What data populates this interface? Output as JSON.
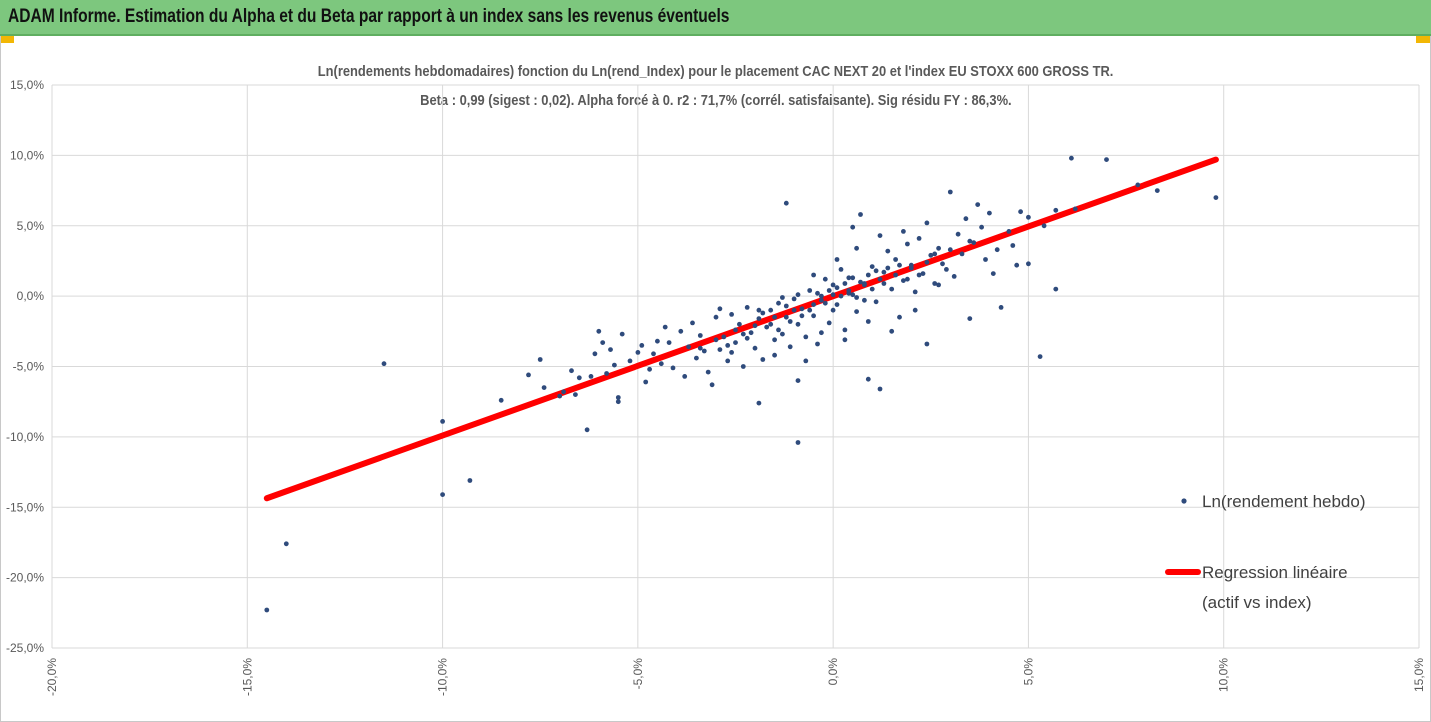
{
  "banner": {
    "title": "ADAM Informe. Estimation du Alpha et du Beta par rapport à un index sans les revenus éventuels"
  },
  "chart_data": {
    "type": "scatter",
    "title": "Ln(rendements hebdomadaires) fonction du Ln(rend_Index) pour le placement CAC NEXT 20 et l'index EU STOXX 600 GROSS TR.",
    "subtitle": "Beta : 0,99 (sigest : 0,02). Alpha forcé à 0. r2 : 71,7% (corrél. satisfaisante). Sig résidu FY : 86,3%.",
    "xlabel": "",
    "ylabel": "",
    "xlim": [
      -20,
      15
    ],
    "ylim": [
      -25,
      15
    ],
    "x_ticks": [
      "-20,0%",
      "-15,0%",
      "-10,0%",
      "-5,0%",
      "0,0%",
      "5,0%",
      "10,0%",
      "15,0%"
    ],
    "y_ticks": [
      "15,0%",
      "10,0%",
      "5,0%",
      "0,0%",
      "-5,0%",
      "-10,0%",
      "-15,0%",
      "-20,0%",
      "-25,0%"
    ],
    "grid": true,
    "legend_position": "right",
    "colors": {
      "points": "#2f4b7c",
      "regression": "#ff0000"
    },
    "series": [
      {
        "name": "Ln(rendement hebdo)",
        "kind": "points",
        "points": [
          [
            -14.5,
            -22.3
          ],
          [
            -14.0,
            -17.6
          ],
          [
            -11.5,
            -4.8
          ],
          [
            -10.0,
            -14.1
          ],
          [
            -10.0,
            -8.9
          ],
          [
            -9.3,
            -13.1
          ],
          [
            -8.5,
            -7.4
          ],
          [
            -7.8,
            -5.6
          ],
          [
            -7.5,
            -4.5
          ],
          [
            -7.4,
            -6.5
          ],
          [
            -7.0,
            -7.1
          ],
          [
            -6.9,
            -6.8
          ],
          [
            -6.7,
            -5.3
          ],
          [
            -6.5,
            -5.8
          ],
          [
            -6.3,
            -9.5
          ],
          [
            -6.1,
            -4.1
          ],
          [
            -6.0,
            -2.5
          ],
          [
            -5.8,
            -5.5
          ],
          [
            -5.7,
            -3.8
          ],
          [
            -5.6,
            -4.9
          ],
          [
            -5.5,
            -7.2
          ],
          [
            -5.5,
            -7.5
          ],
          [
            -5.4,
            -2.7
          ],
          [
            -5.2,
            -4.6
          ],
          [
            -5.0,
            -4.0
          ],
          [
            -4.9,
            -3.5
          ],
          [
            -4.7,
            -5.2
          ],
          [
            -4.5,
            -3.2
          ],
          [
            -4.4,
            -4.8
          ],
          [
            -4.2,
            -3.3
          ],
          [
            -4.1,
            -5.1
          ],
          [
            -3.9,
            -2.5
          ],
          [
            -3.8,
            -5.7
          ],
          [
            -3.7,
            -3.6
          ],
          [
            -3.6,
            -1.9
          ],
          [
            -3.5,
            -4.4
          ],
          [
            -3.4,
            -2.8
          ],
          [
            -3.3,
            -3.9
          ],
          [
            -3.2,
            -5.4
          ],
          [
            -3.0,
            -1.5
          ],
          [
            -2.9,
            -3.8
          ],
          [
            -2.8,
            -2.9
          ],
          [
            -2.7,
            -4.6
          ],
          [
            -2.6,
            -1.3
          ],
          [
            -2.5,
            -3.3
          ],
          [
            -2.4,
            -2.0
          ],
          [
            -2.3,
            -5.0
          ],
          [
            -2.2,
            -0.8
          ],
          [
            -2.1,
            -2.6
          ],
          [
            -2.0,
            -3.7
          ],
          [
            -1.9,
            -7.6
          ],
          [
            -1.9,
            -1.6
          ],
          [
            -1.8,
            -4.5
          ],
          [
            -1.7,
            -2.2
          ],
          [
            -1.6,
            -1.0
          ],
          [
            -1.5,
            -3.1
          ],
          [
            -1.4,
            -0.5
          ],
          [
            -1.3,
            -2.7
          ],
          [
            -1.2,
            6.6
          ],
          [
            -1.2,
            -1.5
          ],
          [
            -1.1,
            -3.6
          ],
          [
            -1.0,
            -0.2
          ],
          [
            -0.9,
            -10.4
          ],
          [
            -0.9,
            -6.0
          ],
          [
            -0.9,
            -2.0
          ],
          [
            -0.8,
            -0.9
          ],
          [
            -0.7,
            -2.9
          ],
          [
            -0.6,
            0.4
          ],
          [
            -0.5,
            -1.4
          ],
          [
            -0.4,
            -3.4
          ],
          [
            -0.3,
            -0.3
          ],
          [
            -0.2,
            1.2
          ],
          [
            -0.1,
            -1.9
          ],
          [
            0.0,
            0.8
          ],
          [
            0.1,
            -0.6
          ],
          [
            0.2,
            1.9
          ],
          [
            0.3,
            -2.4
          ],
          [
            0.4,
            0.2
          ],
          [
            0.5,
            4.9
          ],
          [
            0.5,
            1.3
          ],
          [
            0.6,
            -1.1
          ],
          [
            0.7,
            5.8
          ],
          [
            0.8,
            0.9
          ],
          [
            0.9,
            -5.9
          ],
          [
            1.0,
            2.1
          ],
          [
            1.1,
            -0.4
          ],
          [
            1.2,
            -6.6
          ],
          [
            1.3,
            1.7
          ],
          [
            1.4,
            3.2
          ],
          [
            1.5,
            0.5
          ],
          [
            1.6,
            2.6
          ],
          [
            1.7,
            -1.5
          ],
          [
            1.8,
            1.1
          ],
          [
            1.9,
            3.7
          ],
          [
            2.0,
            2.2
          ],
          [
            2.1,
            0.3
          ],
          [
            2.2,
            4.1
          ],
          [
            2.3,
            1.6
          ],
          [
            2.4,
            -3.4
          ],
          [
            2.5,
            2.9
          ],
          [
            2.6,
            0.9
          ],
          [
            2.7,
            3.4
          ],
          [
            2.8,
            2.3
          ],
          [
            3.0,
            7.4
          ],
          [
            3.1,
            1.4
          ],
          [
            3.3,
            3.0
          ],
          [
            3.4,
            5.5
          ],
          [
            3.5,
            -1.6
          ],
          [
            3.6,
            3.8
          ],
          [
            3.7,
            6.5
          ],
          [
            3.9,
            2.6
          ],
          [
            4.0,
            5.9
          ],
          [
            4.2,
            3.3
          ],
          [
            4.3,
            -0.8
          ],
          [
            4.5,
            4.6
          ],
          [
            4.7,
            2.2
          ],
          [
            4.8,
            6.0
          ],
          [
            5.0,
            2.3
          ],
          [
            5.0,
            5.6
          ],
          [
            5.3,
            -4.3
          ],
          [
            5.4,
            5.0
          ],
          [
            5.7,
            0.5
          ],
          [
            5.7,
            6.1
          ],
          [
            6.1,
            9.8
          ],
          [
            6.2,
            6.2
          ],
          [
            7.0,
            9.7
          ],
          [
            7.8,
            7.9
          ],
          [
            8.3,
            7.5
          ],
          [
            9.8,
            7.0
          ],
          [
            -6.6,
            -7.0
          ],
          [
            -6.2,
            -5.7
          ],
          [
            -5.9,
            -3.3
          ],
          [
            -4.8,
            -6.1
          ],
          [
            -4.6,
            -4.1
          ],
          [
            -4.3,
            -2.2
          ],
          [
            -3.1,
            -6.3
          ],
          [
            -2.9,
            -0.9
          ],
          [
            -2.6,
            -4.0
          ],
          [
            -2.2,
            -3.0
          ],
          [
            -1.8,
            -1.2
          ],
          [
            -1.5,
            -4.2
          ],
          [
            -1.3,
            -0.1
          ],
          [
            -0.7,
            -4.6
          ],
          [
            -0.5,
            1.5
          ],
          [
            -0.3,
            -2.6
          ],
          [
            0.1,
            2.6
          ],
          [
            0.3,
            -3.1
          ],
          [
            0.6,
            3.4
          ],
          [
            0.9,
            -1.8
          ],
          [
            1.2,
            4.3
          ],
          [
            1.5,
            -2.5
          ],
          [
            1.8,
            4.6
          ],
          [
            2.1,
            -1.0
          ],
          [
            2.4,
            5.2
          ],
          [
            2.7,
            0.8
          ],
          [
            2.9,
            1.9
          ],
          [
            3.2,
            4.4
          ],
          [
            3.8,
            4.9
          ],
          [
            4.1,
            1.6
          ],
          [
            4.6,
            3.6
          ],
          [
            -3.0,
            -3.1
          ],
          [
            -2.5,
            -2.4
          ],
          [
            -2.0,
            -2.1
          ],
          [
            -1.5,
            -1.5
          ],
          [
            -1.0,
            -1.0
          ],
          [
            -0.5,
            -0.6
          ],
          [
            0.0,
            0.1
          ],
          [
            0.4,
            0.4
          ],
          [
            0.8,
            0.8
          ],
          [
            1.2,
            1.2
          ],
          [
            1.6,
            1.5
          ],
          [
            2.0,
            2.0
          ],
          [
            2.4,
            2.4
          ],
          [
            -0.2,
            -0.5
          ],
          [
            0.2,
            0.0
          ],
          [
            0.7,
            1.0
          ],
          [
            1.0,
            0.5
          ],
          [
            -0.6,
            -1.0
          ],
          [
            -1.2,
            -0.7
          ],
          [
            1.4,
            2.0
          ],
          [
            0.5,
            0.1
          ],
          [
            0.3,
            0.9
          ],
          [
            -0.8,
            -1.4
          ],
          [
            -0.4,
            0.2
          ],
          [
            0.9,
            1.5
          ],
          [
            1.3,
            0.9
          ],
          [
            -1.6,
            -2.0
          ],
          [
            -2.3,
            -2.7
          ],
          [
            -1.9,
            -1.0
          ],
          [
            2.2,
            1.5
          ],
          [
            2.6,
            3.0
          ],
          [
            0.0,
            -1.0
          ],
          [
            0.1,
            0.6
          ],
          [
            0.6,
            -0.1
          ],
          [
            -0.1,
            0.4
          ],
          [
            1.1,
            1.8
          ],
          [
            1.7,
            2.2
          ],
          [
            -1.1,
            -1.8
          ],
          [
            -2.7,
            -3.5
          ],
          [
            -3.4,
            -3.7
          ],
          [
            3.0,
            3.3
          ],
          [
            3.5,
            3.9
          ],
          [
            -0.3,
            0.0
          ],
          [
            0.4,
            1.3
          ],
          [
            0.8,
            -0.3
          ],
          [
            -0.9,
            0.1
          ],
          [
            1.9,
            1.2
          ],
          [
            -1.4,
            -2.4
          ]
        ]
      },
      {
        "name": "Regression linéaire",
        "name_line2": "(actif vs index)",
        "kind": "line",
        "points": [
          [
            -14.5,
            -14.36
          ],
          [
            9.8,
            9.7
          ]
        ]
      }
    ]
  }
}
